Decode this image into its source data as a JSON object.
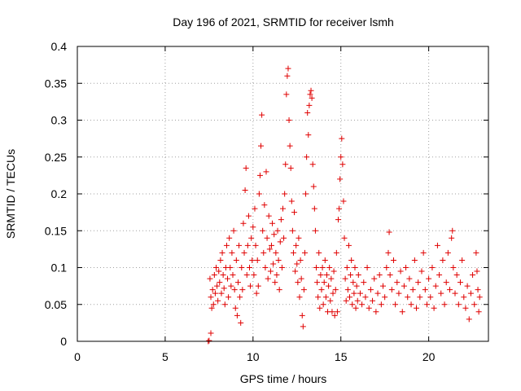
{
  "chart_data": {
    "type": "scatter",
    "title": "Day 196 of 2021, SRMTID for receiver lsmh",
    "xlabel": "GPS time / hours",
    "ylabel": "SRMTID / TECUs",
    "xlim": [
      0,
      23.4
    ],
    "ylim": [
      0,
      0.4
    ],
    "xticks": [
      0,
      5,
      10,
      15,
      20
    ],
    "yticks": [
      0,
      0.05,
      0.1,
      0.15,
      0.2,
      0.25,
      0.3,
      0.35,
      0.4
    ],
    "xtick_labels": [
      "0",
      "5",
      "10",
      "15",
      "20"
    ],
    "ytick_labels": [
      "0",
      "0.05",
      "0.1",
      "0.15",
      "0.2",
      "0.25",
      "0.3",
      "0.35",
      "0.4"
    ],
    "grid": true,
    "marker": "plus",
    "series_color": "#e00000",
    "series": [
      {
        "name": "SRMTID",
        "points": [
          [
            7.45,
            0.0
          ],
          [
            7.5,
            0.001
          ],
          [
            7.6,
            0.011
          ],
          [
            7.55,
            0.085
          ],
          [
            7.6,
            0.06
          ],
          [
            7.65,
            0.045
          ],
          [
            7.7,
            0.07
          ],
          [
            7.75,
            0.05
          ],
          [
            7.8,
            0.09
          ],
          [
            7.85,
            0.065
          ],
          [
            7.9,
            0.1
          ],
          [
            7.95,
            0.075
          ],
          [
            8.0,
            0.055
          ],
          [
            8.05,
            0.095
          ],
          [
            8.1,
            0.08
          ],
          [
            8.15,
            0.11
          ],
          [
            8.2,
            0.065
          ],
          [
            8.25,
            0.12
          ],
          [
            8.3,
            0.09
          ],
          [
            8.35,
            0.072
          ],
          [
            8.4,
            0.05
          ],
          [
            8.45,
            0.1
          ],
          [
            8.5,
            0.13
          ],
          [
            8.55,
            0.085
          ],
          [
            8.6,
            0.06
          ],
          [
            8.65,
            0.14
          ],
          [
            8.7,
            0.1
          ],
          [
            8.75,
            0.075
          ],
          [
            8.8,
            0.12
          ],
          [
            8.85,
            0.09
          ],
          [
            8.9,
            0.15
          ],
          [
            8.95,
            0.07
          ],
          [
            9.0,
            0.045
          ],
          [
            9.05,
            0.11
          ],
          [
            9.1,
            0.035
          ],
          [
            9.15,
            0.08
          ],
          [
            9.2,
            0.13
          ],
          [
            9.25,
            0.06
          ],
          [
            9.3,
            0.025
          ],
          [
            9.35,
            0.1
          ],
          [
            9.4,
            0.07
          ],
          [
            9.45,
            0.16
          ],
          [
            9.5,
            0.12
          ],
          [
            9.55,
            0.205
          ],
          [
            9.6,
            0.235
          ],
          [
            9.65,
            0.09
          ],
          [
            9.7,
            0.13
          ],
          [
            9.75,
            0.17
          ],
          [
            9.8,
            0.1
          ],
          [
            9.85,
            0.075
          ],
          [
            9.9,
            0.14
          ],
          [
            9.95,
            0.11
          ],
          [
            10.0,
            0.155
          ],
          [
            10.05,
            0.09
          ],
          [
            10.1,
            0.18
          ],
          [
            10.15,
            0.13
          ],
          [
            10.2,
            0.065
          ],
          [
            10.25,
            0.11
          ],
          [
            10.3,
            0.075
          ],
          [
            10.35,
            0.2
          ],
          [
            10.4,
            0.225
          ],
          [
            10.45,
            0.265
          ],
          [
            10.5,
            0.307
          ],
          [
            10.55,
            0.15
          ],
          [
            10.6,
            0.12
          ],
          [
            10.65,
            0.185
          ],
          [
            10.7,
            0.1
          ],
          [
            10.75,
            0.23
          ],
          [
            10.8,
            0.14
          ],
          [
            10.85,
            0.085
          ],
          [
            10.9,
            0.17
          ],
          [
            10.95,
            0.125
          ],
          [
            11.0,
            0.095
          ],
          [
            11.05,
            0.13
          ],
          [
            11.1,
            0.16
          ],
          [
            11.15,
            0.105
          ],
          [
            11.2,
            0.145
          ],
          [
            11.25,
            0.08
          ],
          [
            11.3,
            0.12
          ],
          [
            11.35,
            0.09
          ],
          [
            11.4,
            0.15
          ],
          [
            11.45,
            0.11
          ],
          [
            11.5,
            0.07
          ],
          [
            11.55,
            0.135
          ],
          [
            11.6,
            0.165
          ],
          [
            11.65,
            0.1
          ],
          [
            11.7,
            0.18
          ],
          [
            11.75,
            0.14
          ],
          [
            11.8,
            0.2
          ],
          [
            11.85,
            0.24
          ],
          [
            11.9,
            0.335
          ],
          [
            11.95,
            0.36
          ],
          [
            12.0,
            0.37
          ],
          [
            12.05,
            0.3
          ],
          [
            12.1,
            0.265
          ],
          [
            12.15,
            0.235
          ],
          [
            12.2,
            0.19
          ],
          [
            12.25,
            0.15
          ],
          [
            12.3,
            0.12
          ],
          [
            12.35,
            0.175
          ],
          [
            12.4,
            0.095
          ],
          [
            12.45,
            0.13
          ],
          [
            12.5,
            0.105
          ],
          [
            12.55,
            0.08
          ],
          [
            12.6,
            0.14
          ],
          [
            12.65,
            0.06
          ],
          [
            12.7,
            0.11
          ],
          [
            12.75,
            0.085
          ],
          [
            12.8,
            0.035
          ],
          [
            12.85,
            0.02
          ],
          [
            12.9,
            0.07
          ],
          [
            12.95,
            0.12
          ],
          [
            13.0,
            0.2
          ],
          [
            13.05,
            0.25
          ],
          [
            13.1,
            0.31
          ],
          [
            13.15,
            0.28
          ],
          [
            13.2,
            0.32
          ],
          [
            13.25,
            0.335
          ],
          [
            13.3,
            0.34
          ],
          [
            13.35,
            0.33
          ],
          [
            13.4,
            0.24
          ],
          [
            13.45,
            0.21
          ],
          [
            13.5,
            0.18
          ],
          [
            13.55,
            0.15
          ],
          [
            13.6,
            0.1
          ],
          [
            13.65,
            0.08
          ],
          [
            13.7,
            0.06
          ],
          [
            13.75,
            0.12
          ],
          [
            13.8,
            0.045
          ],
          [
            13.85,
            0.09
          ],
          [
            13.9,
            0.07
          ],
          [
            13.95,
            0.1
          ],
          [
            14.0,
            0.05
          ],
          [
            14.05,
            0.08
          ],
          [
            14.1,
            0.11
          ],
          [
            14.15,
            0.06
          ],
          [
            14.2,
            0.09
          ],
          [
            14.25,
            0.04
          ],
          [
            14.3,
            0.075
          ],
          [
            14.35,
            0.1
          ],
          [
            14.4,
            0.055
          ],
          [
            14.45,
            0.085
          ],
          [
            14.5,
            0.04
          ],
          [
            14.55,
            0.065
          ],
          [
            14.6,
            0.095
          ],
          [
            14.65,
            0.035
          ],
          [
            14.7,
            0.07
          ],
          [
            14.75,
            0.12
          ],
          [
            14.8,
            0.04
          ],
          [
            14.85,
            0.165
          ],
          [
            14.9,
            0.18
          ],
          [
            14.95,
            0.22
          ],
          [
            15.0,
            0.25
          ],
          [
            15.05,
            0.275
          ],
          [
            15.1,
            0.24
          ],
          [
            15.15,
            0.19
          ],
          [
            15.2,
            0.14
          ],
          [
            15.25,
            0.085
          ],
          [
            15.3,
            0.055
          ],
          [
            15.35,
            0.1
          ],
          [
            15.4,
            0.07
          ],
          [
            15.45,
            0.13
          ],
          [
            15.5,
            0.06
          ],
          [
            15.55,
            0.09
          ],
          [
            15.6,
            0.11
          ],
          [
            15.65,
            0.05
          ],
          [
            15.7,
            0.08
          ],
          [
            15.75,
            0.065
          ],
          [
            15.8,
            0.1
          ],
          [
            15.85,
            0.045
          ],
          [
            15.9,
            0.075
          ],
          [
            15.95,
            0.055
          ],
          [
            16.0,
            0.09
          ],
          [
            16.1,
            0.065
          ],
          [
            16.2,
            0.05
          ],
          [
            16.3,
            0.08
          ],
          [
            16.4,
            0.06
          ],
          [
            16.5,
            0.1
          ],
          [
            16.6,
            0.045
          ],
          [
            16.7,
            0.07
          ],
          [
            16.8,
            0.055
          ],
          [
            16.9,
            0.085
          ],
          [
            17.0,
            0.04
          ],
          [
            17.1,
            0.065
          ],
          [
            17.2,
            0.09
          ],
          [
            17.3,
            0.05
          ],
          [
            17.4,
            0.075
          ],
          [
            17.5,
            0.06
          ],
          [
            17.6,
            0.1
          ],
          [
            17.7,
            0.12
          ],
          [
            17.75,
            0.148
          ],
          [
            17.8,
            0.09
          ],
          [
            17.9,
            0.07
          ],
          [
            18.0,
            0.11
          ],
          [
            18.1,
            0.05
          ],
          [
            18.2,
            0.08
          ],
          [
            18.3,
            0.065
          ],
          [
            18.4,
            0.095
          ],
          [
            18.5,
            0.04
          ],
          [
            18.6,
            0.075
          ],
          [
            18.7,
            0.1
          ],
          [
            18.8,
            0.06
          ],
          [
            18.9,
            0.085
          ],
          [
            19.0,
            0.05
          ],
          [
            19.1,
            0.07
          ],
          [
            19.2,
            0.11
          ],
          [
            19.3,
            0.045
          ],
          [
            19.4,
            0.08
          ],
          [
            19.5,
            0.06
          ],
          [
            19.6,
            0.095
          ],
          [
            19.7,
            0.12
          ],
          [
            19.8,
            0.07
          ],
          [
            19.9,
            0.05
          ],
          [
            20.0,
            0.085
          ],
          [
            20.1,
            0.06
          ],
          [
            20.2,
            0.1
          ],
          [
            20.3,
            0.045
          ],
          [
            20.4,
            0.075
          ],
          [
            20.5,
            0.13
          ],
          [
            20.6,
            0.09
          ],
          [
            20.7,
            0.065
          ],
          [
            20.8,
            0.11
          ],
          [
            20.9,
            0.05
          ],
          [
            21.0,
            0.08
          ],
          [
            21.1,
            0.12
          ],
          [
            21.2,
            0.07
          ],
          [
            21.3,
            0.14
          ],
          [
            21.35,
            0.15
          ],
          [
            21.4,
            0.1
          ],
          [
            21.5,
            0.065
          ],
          [
            21.6,
            0.09
          ],
          [
            21.7,
            0.05
          ],
          [
            21.8,
            0.08
          ],
          [
            21.9,
            0.11
          ],
          [
            22.0,
            0.06
          ],
          [
            22.1,
            0.045
          ],
          [
            22.2,
            0.075
          ],
          [
            22.3,
            0.03
          ],
          [
            22.4,
            0.065
          ],
          [
            22.5,
            0.09
          ],
          [
            22.6,
            0.05
          ],
          [
            22.7,
            0.12
          ],
          [
            22.75,
            0.095
          ],
          [
            22.8,
            0.07
          ],
          [
            22.85,
            0.04
          ],
          [
            22.9,
            0.06
          ]
        ]
      }
    ]
  }
}
